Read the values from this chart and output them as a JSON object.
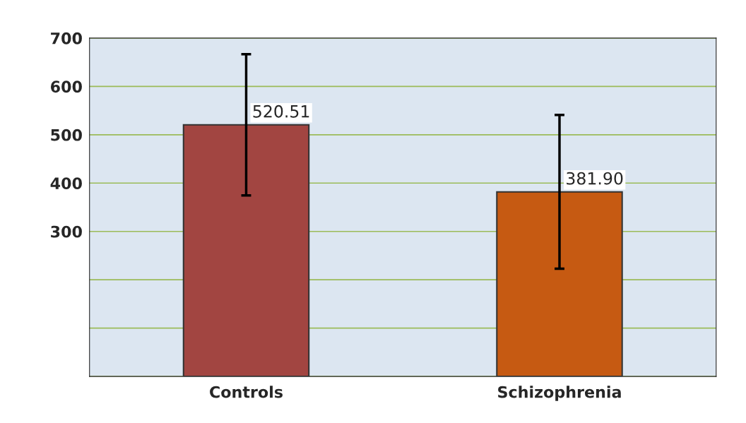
{
  "chart_data": {
    "type": "bar",
    "categories": [
      "Controls",
      "Schizophrenia"
    ],
    "values": [
      520.51,
      381.9
    ],
    "colors": [
      "#a24541",
      "#c65a12"
    ],
    "errors": [
      146,
      159
    ],
    "value_labels": [
      "520.51",
      "381.90"
    ],
    "ylim": [
      0,
      700
    ],
    "yticks": [
      {
        "value": 0,
        "label": null
      },
      {
        "value": 100,
        "label": null
      },
      {
        "value": 200,
        "label": null
      },
      300,
      400,
      500,
      600,
      700
    ],
    "grid": "y"
  }
}
